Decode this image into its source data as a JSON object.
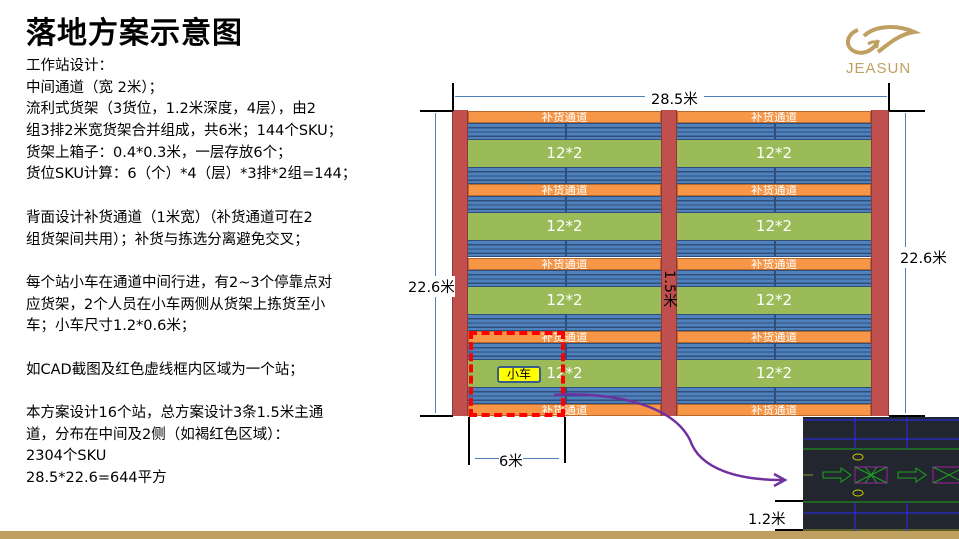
{
  "title": "落地方案示意图",
  "logo": {
    "text": "JEASUN",
    "color": "#c0a062"
  },
  "description": [
    "工作站设计：",
    "中间通道（宽 2米）；",
    "流利式货架（3货位，1.2米深度，4层），由2",
    "组3排2米宽货架合并组成，共6米；144个SKU；",
    "货架上箱子：0.4*0.3米，一层存放6个；",
    "货位SKU计算：6（个）*4（层）*3排*2组=144；",
    "",
    "背面设计补货通道（1米宽）（补货通道可在2",
    "组货架间共用）；补货与拣选分离避免交叉；",
    "",
    "每个站小车在通道中间行进，有2~3个停靠点对",
    "应货架，2个人员在小车两侧从货架上拣货至小",
    "车；小车尺寸1.2*0.6米；",
    "",
    "如CAD截图及红色虚线框内区域为一个站；",
    "",
    "本方案设计16个站，总方案设计3条1.5米主通",
    "道，分布在中间及2侧（如褐红色区域）：",
    "2304个SKU",
    "28.5*22.6=644平方"
  ],
  "diagram": {
    "width_label": "28.5米",
    "height_label_left": "22.6米",
    "height_label_right": "22.6米",
    "main_aisle_label": "1.5米",
    "replenish_label": "补货通道",
    "pick_zone_label": "12*2",
    "cart_label": "小车",
    "station_width_label": "6米",
    "cad_depth_label": "1.2米",
    "colors": {
      "aisle": "#c0504d",
      "replenish": "#f79646",
      "rack": "#4f81bd",
      "pick": "#9bbb59",
      "station": "#ff0000",
      "cart": "#ffff00"
    }
  }
}
